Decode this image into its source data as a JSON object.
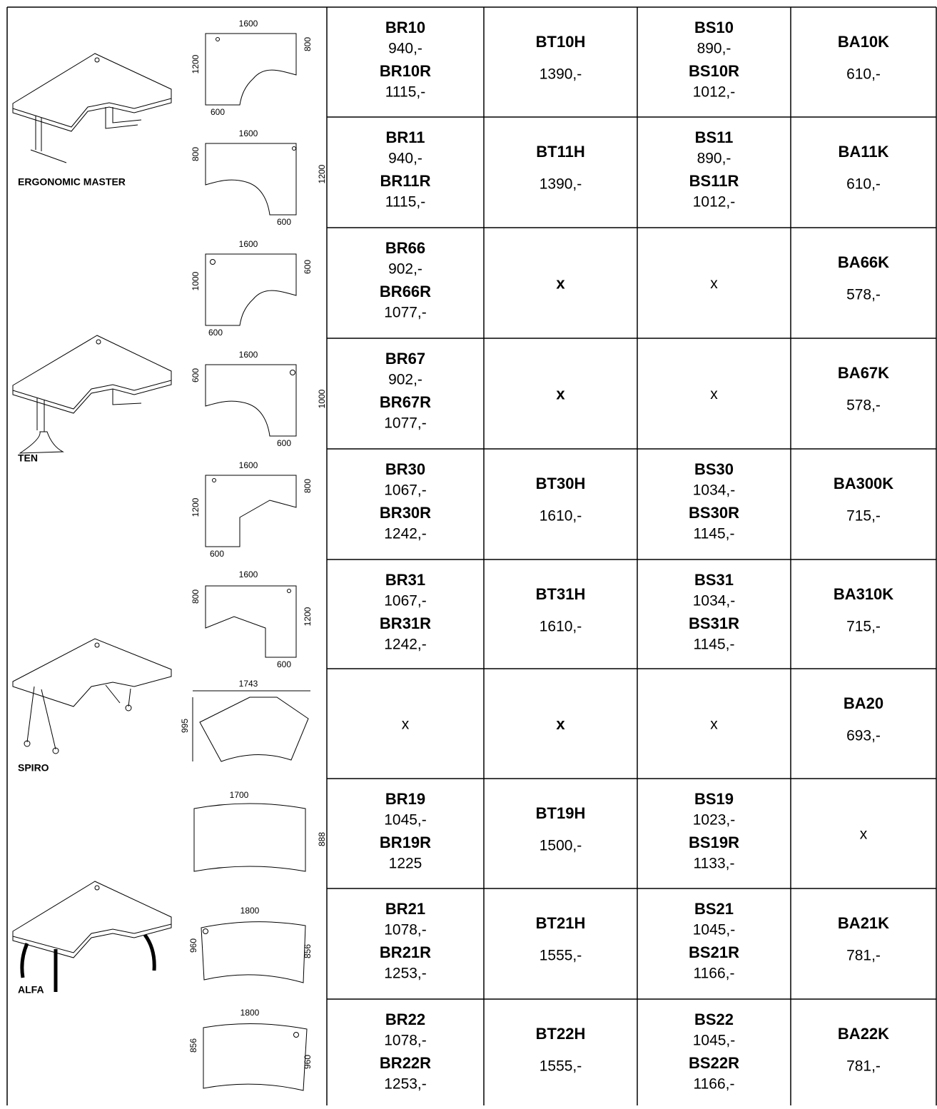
{
  "groups": [
    {
      "name": "ERGONOMIC MASTER"
    },
    {
      "name": "TEN"
    },
    {
      "name": "SPIRO"
    },
    {
      "name": "ALFA"
    }
  ],
  "rows": [
    {
      "dims": {
        "top": "1600",
        "left": "1200",
        "right": "800",
        "bottom": "600"
      },
      "cells": [
        [
          {
            "text": "BR10",
            "bold": true
          },
          {
            "text": "940,-",
            "bold": false
          },
          {
            "text": "BR10R",
            "bold": true
          },
          {
            "text": "1115,-",
            "bold": false
          }
        ],
        [
          {
            "text": "BT10H",
            "bold": true
          },
          {
            "text": "1390,-",
            "bold": false
          }
        ],
        [
          {
            "text": "BS10",
            "bold": true
          },
          {
            "text": "890,-",
            "bold": false
          },
          {
            "text": "BS10R",
            "bold": true
          },
          {
            "text": "1012,-",
            "bold": false
          }
        ],
        [
          {
            "text": "BA10K",
            "bold": true
          },
          {
            "text": "610,-",
            "bold": false
          }
        ]
      ]
    },
    {
      "dims": {
        "top": "1600",
        "left": "800",
        "right": "1200",
        "bottom": "600"
      },
      "cells": [
        [
          {
            "text": "BR11",
            "bold": true
          },
          {
            "text": "940,-",
            "bold": false
          },
          {
            "text": "BR11R",
            "bold": true
          },
          {
            "text": "1115,-",
            "bold": false
          }
        ],
        [
          {
            "text": "BT11H",
            "bold": true
          },
          {
            "text": "1390,-",
            "bold": false
          }
        ],
        [
          {
            "text": "BS11",
            "bold": true
          },
          {
            "text": "890,-",
            "bold": false
          },
          {
            "text": "BS11R",
            "bold": true
          },
          {
            "text": "1012,-",
            "bold": false
          }
        ],
        [
          {
            "text": "BA11K",
            "bold": true
          },
          {
            "text": "610,-",
            "bold": false
          }
        ]
      ]
    },
    {
      "dims": {
        "top": "1600",
        "left": "1000",
        "right": "600",
        "bottom": "600"
      },
      "cells": [
        [
          {
            "text": "BR66",
            "bold": true
          },
          {
            "text": "902,-",
            "bold": false
          },
          {
            "text": "BR66R",
            "bold": true
          },
          {
            "text": "1077,-",
            "bold": false
          }
        ],
        [
          {
            "text": "x",
            "bold": true
          }
        ],
        [
          {
            "text": "x",
            "bold": false
          }
        ],
        [
          {
            "text": "BA66K",
            "bold": true
          },
          {
            "text": "578,-",
            "bold": false
          }
        ]
      ]
    },
    {
      "dims": {
        "top": "1600",
        "left": "600",
        "right": "1000",
        "bottom": "600"
      },
      "cells": [
        [
          {
            "text": "BR67",
            "bold": true
          },
          {
            "text": "902,-",
            "bold": false
          },
          {
            "text": "BR67R",
            "bold": true
          },
          {
            "text": "1077,-",
            "bold": false
          }
        ],
        [
          {
            "text": "x",
            "bold": true
          }
        ],
        [
          {
            "text": "x",
            "bold": false
          }
        ],
        [
          {
            "text": "BA67K",
            "bold": true
          },
          {
            "text": "578,-",
            "bold": false
          }
        ]
      ]
    },
    {
      "dims": {
        "top": "1600",
        "left": "1200",
        "right": "800",
        "bottom": "600"
      },
      "cells": [
        [
          {
            "text": "BR30",
            "bold": true
          },
          {
            "text": "1067,-",
            "bold": false
          },
          {
            "text": "BR30R",
            "bold": true
          },
          {
            "text": "1242,-",
            "bold": false
          }
        ],
        [
          {
            "text": "BT30H",
            "bold": true
          },
          {
            "text": "1610,-",
            "bold": false
          }
        ],
        [
          {
            "text": "BS30",
            "bold": true
          },
          {
            "text": "1034,-",
            "bold": false
          },
          {
            "text": "BS30R",
            "bold": true
          },
          {
            "text": "1145,-",
            "bold": false
          }
        ],
        [
          {
            "text": "BA300K",
            "bold": true
          },
          {
            "text": "715,-",
            "bold": false
          }
        ]
      ]
    },
    {
      "dims": {
        "top": "1600",
        "left": "800",
        "right": "1200",
        "bottom": "600"
      },
      "cells": [
        [
          {
            "text": "BR31",
            "bold": true
          },
          {
            "text": "1067,-",
            "bold": false
          },
          {
            "text": "BR31R",
            "bold": true
          },
          {
            "text": "1242,-",
            "bold": false
          }
        ],
        [
          {
            "text": "BT31H",
            "bold": true
          },
          {
            "text": "1610,-",
            "bold": false
          }
        ],
        [
          {
            "text": "BS31",
            "bold": true
          },
          {
            "text": "1034,-",
            "bold": false
          },
          {
            "text": "BS31R",
            "bold": true
          },
          {
            "text": "1145,-",
            "bold": false
          }
        ],
        [
          {
            "text": "BA310K",
            "bold": true
          },
          {
            "text": "715,-",
            "bold": false
          }
        ]
      ]
    },
    {
      "dims": {
        "top": "1743",
        "left": "995"
      },
      "cells": [
        [
          {
            "text": "x",
            "bold": false
          }
        ],
        [
          {
            "text": "x",
            "bold": true
          }
        ],
        [
          {
            "text": "x",
            "bold": false
          }
        ],
        [
          {
            "text": "BA20",
            "bold": true
          },
          {
            "text": "693,-",
            "bold": false
          }
        ]
      ]
    },
    {
      "dims": {
        "top": "1700",
        "right": "888"
      },
      "cells": [
        [
          {
            "text": "BR19",
            "bold": true
          },
          {
            "text": "1045,-",
            "bold": false
          },
          {
            "text": "BR19R",
            "bold": true
          },
          {
            "text": "1225",
            "bold": false
          }
        ],
        [
          {
            "text": "BT19H",
            "bold": true
          },
          {
            "text": "1500,-",
            "bold": false
          }
        ],
        [
          {
            "text": "BS19",
            "bold": true
          },
          {
            "text": "1023,-",
            "bold": false
          },
          {
            "text": "BS19R",
            "bold": true
          },
          {
            "text": "1133,-",
            "bold": false
          }
        ],
        [
          {
            "text": "x",
            "bold": false
          }
        ]
      ]
    },
    {
      "dims": {
        "top": "1800",
        "left": "960",
        "right": "856"
      },
      "cells": [
        [
          {
            "text": "BR21",
            "bold": true
          },
          {
            "text": "1078,-",
            "bold": false
          },
          {
            "text": "BR21R",
            "bold": true
          },
          {
            "text": "1253,-",
            "bold": false
          }
        ],
        [
          {
            "text": "BT21H",
            "bold": true
          },
          {
            "text": "1555,-",
            "bold": false
          }
        ],
        [
          {
            "text": "BS21",
            "bold": true
          },
          {
            "text": "1045,-",
            "bold": false
          },
          {
            "text": "BS21R",
            "bold": true
          },
          {
            "text": "1166,-",
            "bold": false
          }
        ],
        [
          {
            "text": "BA21K",
            "bold": true
          },
          {
            "text": "781,-",
            "bold": false
          }
        ]
      ]
    },
    {
      "dims": {
        "top": "1800",
        "left": "856",
        "right": "960"
      },
      "cells": [
        [
          {
            "text": "BR22",
            "bold": true
          },
          {
            "text": "1078,-",
            "bold": false
          },
          {
            "text": "BR22R",
            "bold": true
          },
          {
            "text": "1253,-",
            "bold": false
          }
        ],
        [
          {
            "text": "BT22H",
            "bold": true
          },
          {
            "text": "1555,-",
            "bold": false
          }
        ],
        [
          {
            "text": "BS22",
            "bold": true
          },
          {
            "text": "1045,-",
            "bold": false
          },
          {
            "text": "BS22R",
            "bold": true
          },
          {
            "text": "1166,-",
            "bold": false
          }
        ],
        [
          {
            "text": "BA22K",
            "bold": true
          },
          {
            "text": "781,-",
            "bold": false
          }
        ]
      ]
    }
  ]
}
